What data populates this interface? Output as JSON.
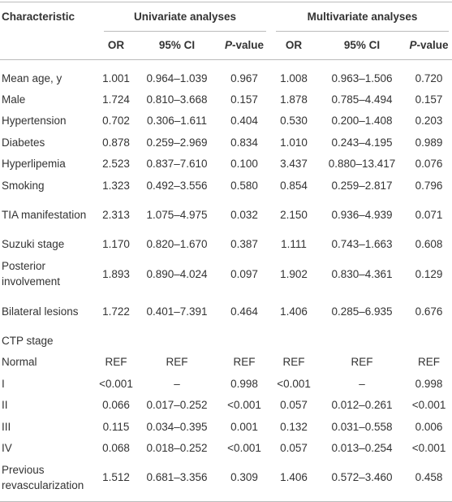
{
  "table": {
    "header": {
      "characteristic": "Characteristic",
      "groups": [
        "Univariate analyses",
        "Multivariate analyses"
      ],
      "columns": [
        "OR",
        "95% CI",
        {
          "italic": "P",
          "rest": "-value"
        },
        "OR",
        "95% CI",
        {
          "italic": "P",
          "rest": "-value"
        }
      ]
    },
    "rows": [
      [
        "Mean age, y",
        "1.001",
        "0.964–1.039",
        "0.967",
        "1.008",
        "0.963–1.506",
        "0.720"
      ],
      [
        "Male",
        "1.724",
        "0.810–3.668",
        "0.157",
        "1.878",
        "0.785–4.494",
        "0.157"
      ],
      [
        "Hypertension",
        "0.702",
        "0.306–1.611",
        "0.404",
        "0.530",
        "0.200–1.408",
        "0.203"
      ],
      [
        "Diabetes",
        "0.878",
        "0.259–2.969",
        "0.834",
        "1.010",
        "0.243–4.195",
        "0.989"
      ],
      [
        "Hyperlipemia",
        "2.523",
        "0.837–7.610",
        "0.100",
        "3.437",
        "0.880–13.417",
        "0.076"
      ],
      [
        "Smoking",
        "1.323",
        "0.492–3.556",
        "0.580",
        "0.854",
        "0.259–2.817",
        "0.796"
      ],
      [
        "TIA manifestation",
        "2.313",
        "1.075–4.975",
        "0.032",
        "2.150",
        "0.936–4.939",
        "0.071"
      ],
      [
        "Suzuki stage",
        "1.170",
        "0.820–1.670",
        "0.387",
        "1.111",
        "0.743–1.663",
        "0.608"
      ],
      [
        "Posterior involvement",
        "1.893",
        "0.890–4.024",
        "0.097",
        "1.902",
        "0.830–4.361",
        "0.129"
      ],
      [
        "Bilateral lesions",
        "1.722",
        "0.401–7.391",
        "0.464",
        "1.406",
        "0.285–6.935",
        "0.676"
      ],
      [
        "CTP stage"
      ],
      [
        "Normal",
        "REF",
        "REF",
        "REF",
        "REF",
        "REF",
        "REF"
      ],
      [
        "I",
        "<0.001",
        "–",
        "0.998",
        "<0.001",
        "–",
        "0.998"
      ],
      [
        "II",
        "0.066",
        "0.017–0.252",
        "<0.001",
        "0.057",
        "0.012–0.261",
        "<0.001"
      ],
      [
        "III",
        "0.115",
        "0.034–0.395",
        "0.001",
        "0.132",
        "0.031–0.558",
        "0.006"
      ],
      [
        "IV",
        "0.068",
        "0.018–0.252",
        "<0.001",
        "0.057",
        "0.013–0.254",
        "<0.001"
      ],
      [
        "Previous revascularization",
        "1.512",
        "0.681–3.356",
        "0.309",
        "1.406",
        "0.572–3.460",
        "0.458"
      ]
    ]
  }
}
